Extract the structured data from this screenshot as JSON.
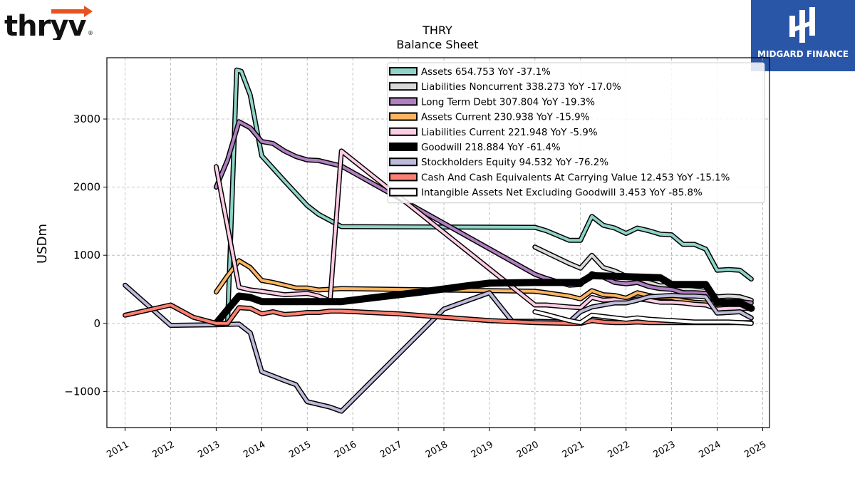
{
  "branding": {
    "company_logo_text": "thryv",
    "registered_mark": "®",
    "publisher_badge": "MIDGARD FINANCE",
    "accent_color": "#e8521e",
    "badge_color": "#2a56a8"
  },
  "chart_data": {
    "type": "line",
    "title": "THRY",
    "subtitle": "Balance  Sheet",
    "xlabel": "",
    "ylabel": "USDm",
    "xlim": [
      2010.6,
      2025.15
    ],
    "ylim": [
      -1530,
      3900
    ],
    "x_ticks": [
      "2011",
      "2012",
      "2013",
      "2014",
      "2015",
      "2016",
      "2017",
      "2018",
      "2019",
      "2020",
      "2021",
      "2022",
      "2023",
      "2024",
      "2025"
    ],
    "y_ticks": [
      {
        "value": 3000,
        "label": "3000"
      },
      {
        "value": 2000,
        "label": "2000"
      },
      {
        "value": 1000,
        "label": "1000"
      },
      {
        "value": 0,
        "label": "0"
      },
      {
        "value": -1000,
        "label": "−1000"
      }
    ],
    "grid": true,
    "legend_position": "top-right",
    "series": [
      {
        "name": "Assets  654.753 YoY -37.1%",
        "color": "#8dd3c7",
        "width": 4,
        "points": [
          [
            2013.0,
            0
          ],
          [
            2013.25,
            0
          ],
          [
            2013.45,
            3720
          ],
          [
            2013.55,
            3700
          ],
          [
            2013.75,
            3350
          ],
          [
            2014.0,
            2460
          ],
          [
            2014.5,
            2090
          ],
          [
            2015.0,
            1730
          ],
          [
            2015.25,
            1600
          ],
          [
            2015.75,
            1420
          ],
          [
            2020.0,
            1410
          ],
          [
            2020.25,
            1360
          ],
          [
            2020.75,
            1220
          ],
          [
            2021.0,
            1220
          ],
          [
            2021.25,
            1570
          ],
          [
            2021.5,
            1440
          ],
          [
            2021.75,
            1400
          ],
          [
            2022.0,
            1320
          ],
          [
            2022.25,
            1400
          ],
          [
            2022.5,
            1360
          ],
          [
            2022.75,
            1310
          ],
          [
            2023.0,
            1300
          ],
          [
            2023.25,
            1160
          ],
          [
            2023.5,
            1160
          ],
          [
            2023.75,
            1090
          ],
          [
            2024.0,
            780
          ],
          [
            2024.25,
            790
          ],
          [
            2024.5,
            780
          ],
          [
            2024.75,
            650
          ]
        ]
      },
      {
        "name": "Liabilities Noncurrent  338.273 YoY -17.0%",
        "color": "#d9d9d9",
        "width": 4,
        "points": [
          [
            2020.0,
            1120
          ],
          [
            2020.25,
            1040
          ],
          [
            2020.75,
            880
          ],
          [
            2021.0,
            810
          ],
          [
            2021.25,
            1000
          ],
          [
            2021.5,
            820
          ],
          [
            2021.75,
            770
          ],
          [
            2022.0,
            690
          ],
          [
            2022.25,
            670
          ],
          [
            2022.5,
            600
          ],
          [
            2022.75,
            550
          ],
          [
            2023.0,
            560
          ],
          [
            2023.25,
            510
          ],
          [
            2023.5,
            490
          ],
          [
            2023.75,
            470
          ],
          [
            2024.0,
            390
          ],
          [
            2024.25,
            400
          ],
          [
            2024.5,
            390
          ],
          [
            2024.75,
            340
          ]
        ]
      },
      {
        "name": "Long Term Debt  307.804 YoY -19.3%",
        "color": "#b07fc0",
        "width": 4,
        "points": [
          [
            2013.0,
            2000
          ],
          [
            2013.25,
            2400
          ],
          [
            2013.5,
            2960
          ],
          [
            2013.75,
            2870
          ],
          [
            2014.0,
            2670
          ],
          [
            2014.25,
            2640
          ],
          [
            2014.5,
            2530
          ],
          [
            2014.75,
            2450
          ],
          [
            2015.0,
            2400
          ],
          [
            2015.25,
            2390
          ],
          [
            2015.75,
            2310
          ],
          [
            2020.0,
            720
          ],
          [
            2020.25,
            660
          ],
          [
            2020.75,
            560
          ],
          [
            2021.0,
            570
          ],
          [
            2021.25,
            730
          ],
          [
            2021.5,
            680
          ],
          [
            2021.75,
            600
          ],
          [
            2022.0,
            580
          ],
          [
            2022.25,
            600
          ],
          [
            2022.5,
            540
          ],
          [
            2022.75,
            510
          ],
          [
            2023.0,
            500
          ],
          [
            2023.25,
            450
          ],
          [
            2023.5,
            450
          ],
          [
            2023.75,
            440
          ],
          [
            2024.0,
            310
          ],
          [
            2024.25,
            320
          ],
          [
            2024.5,
            320
          ],
          [
            2024.75,
            300
          ]
        ]
      },
      {
        "name": "Assets Current  230.938 YoY -15.9%",
        "color": "#fdb462",
        "width": 4,
        "points": [
          [
            2013.0,
            460
          ],
          [
            2013.25,
            700
          ],
          [
            2013.5,
            920
          ],
          [
            2013.75,
            820
          ],
          [
            2014.0,
            630
          ],
          [
            2014.25,
            600
          ],
          [
            2014.5,
            560
          ],
          [
            2014.75,
            520
          ],
          [
            2015.0,
            520
          ],
          [
            2015.25,
            490
          ],
          [
            2015.75,
            510
          ],
          [
            2020.0,
            470
          ],
          [
            2020.25,
            450
          ],
          [
            2020.75,
            400
          ],
          [
            2021.0,
            360
          ],
          [
            2021.25,
            480
          ],
          [
            2021.5,
            420
          ],
          [
            2021.75,
            410
          ],
          [
            2022.0,
            370
          ],
          [
            2022.25,
            450
          ],
          [
            2022.5,
            410
          ],
          [
            2022.75,
            380
          ],
          [
            2023.0,
            380
          ],
          [
            2023.25,
            330
          ],
          [
            2023.5,
            310
          ],
          [
            2023.75,
            300
          ],
          [
            2024.0,
            230
          ],
          [
            2024.25,
            250
          ],
          [
            2024.5,
            250
          ],
          [
            2024.75,
            230
          ]
        ]
      },
      {
        "name": "Liabilities Current  221.948 YoY -5.9%",
        "color": "#fccde5",
        "width": 4,
        "points": [
          [
            2013.0,
            2300
          ],
          [
            2013.5,
            530
          ],
          [
            2013.75,
            490
          ],
          [
            2014.0,
            470
          ],
          [
            2014.5,
            420
          ],
          [
            2015.0,
            440
          ],
          [
            2015.25,
            400
          ],
          [
            2015.5,
            330
          ],
          [
            2015.75,
            2530
          ],
          [
            2020.0,
            270
          ],
          [
            2020.25,
            270
          ],
          [
            2020.75,
            240
          ],
          [
            2021.0,
            230
          ],
          [
            2021.25,
            380
          ],
          [
            2021.5,
            340
          ],
          [
            2021.75,
            350
          ],
          [
            2022.0,
            320
          ],
          [
            2022.25,
            360
          ],
          [
            2022.5,
            340
          ],
          [
            2022.75,
            310
          ],
          [
            2023.0,
            310
          ],
          [
            2023.25,
            300
          ],
          [
            2023.5,
            280
          ],
          [
            2023.75,
            270
          ],
          [
            2024.0,
            210
          ],
          [
            2024.25,
            220
          ],
          [
            2024.5,
            220
          ],
          [
            2024.75,
            220
          ]
        ]
      },
      {
        "name": "Goodwill  218.884 YoY -61.4%",
        "color": "#000000",
        "width": 7,
        "points": [
          [
            2013.0,
            0
          ],
          [
            2013.25,
            200
          ],
          [
            2013.5,
            400
          ],
          [
            2013.75,
            380
          ],
          [
            2014.0,
            320
          ],
          [
            2015.75,
            320
          ],
          [
            2016.5,
            380
          ],
          [
            2017.5,
            460
          ],
          [
            2018.5,
            550
          ],
          [
            2019.0,
            590
          ],
          [
            2020.0,
            600
          ],
          [
            2020.75,
            600
          ],
          [
            2021.0,
            600
          ],
          [
            2021.25,
            700
          ],
          [
            2021.75,
            690
          ],
          [
            2022.25,
            680
          ],
          [
            2022.75,
            670
          ],
          [
            2023.0,
            570
          ],
          [
            2023.25,
            570
          ],
          [
            2023.5,
            570
          ],
          [
            2023.75,
            570
          ],
          [
            2024.0,
            310
          ],
          [
            2024.25,
            300
          ],
          [
            2024.5,
            300
          ],
          [
            2024.75,
            220
          ]
        ]
      },
      {
        "name": "Stockholders Equity  94.532 YoY -76.2%",
        "color": "#bebada",
        "width": 4,
        "points": [
          [
            2011.0,
            560
          ],
          [
            2012.0,
            -30
          ],
          [
            2013.0,
            -20
          ],
          [
            2013.5,
            -10
          ],
          [
            2013.75,
            -140
          ],
          [
            2014.0,
            -710
          ],
          [
            2014.5,
            -840
          ],
          [
            2014.75,
            -900
          ],
          [
            2015.0,
            -1150
          ],
          [
            2015.5,
            -1230
          ],
          [
            2015.75,
            -1290
          ],
          [
            2018.0,
            210
          ],
          [
            2019.0,
            450
          ],
          [
            2019.5,
            30
          ],
          [
            2020.0,
            30
          ],
          [
            2020.75,
            20
          ],
          [
            2021.0,
            170
          ],
          [
            2021.25,
            240
          ],
          [
            2021.75,
            300
          ],
          [
            2022.0,
            300
          ],
          [
            2022.25,
            340
          ],
          [
            2022.5,
            390
          ],
          [
            2022.75,
            400
          ],
          [
            2023.0,
            410
          ],
          [
            2023.25,
            400
          ],
          [
            2023.5,
            400
          ],
          [
            2023.75,
            390
          ],
          [
            2024.0,
            150
          ],
          [
            2024.25,
            160
          ],
          [
            2024.5,
            170
          ],
          [
            2024.75,
            80
          ]
        ]
      },
      {
        "name": "Cash And Cash Equivalents At Carrying Value  12.453 YoY -15.1%",
        "color": "#fb8072",
        "width": 4,
        "points": [
          [
            2011.0,
            120
          ],
          [
            2012.0,
            270
          ],
          [
            2012.5,
            90
          ],
          [
            2013.0,
            0
          ],
          [
            2013.25,
            0
          ],
          [
            2013.5,
            230
          ],
          [
            2013.75,
            220
          ],
          [
            2014.0,
            140
          ],
          [
            2014.25,
            170
          ],
          [
            2014.5,
            130
          ],
          [
            2014.75,
            140
          ],
          [
            2015.0,
            160
          ],
          [
            2015.25,
            160
          ],
          [
            2015.5,
            180
          ],
          [
            2015.75,
            180
          ],
          [
            2017.0,
            140
          ],
          [
            2018.0,
            90
          ],
          [
            2019.0,
            40
          ],
          [
            2020.0,
            10
          ],
          [
            2020.75,
            0
          ],
          [
            2021.0,
            0
          ],
          [
            2021.25,
            40
          ],
          [
            2021.5,
            20
          ],
          [
            2021.75,
            10
          ],
          [
            2022.0,
            10
          ],
          [
            2022.25,
            20
          ],
          [
            2022.5,
            10
          ],
          [
            2022.75,
            10
          ],
          [
            2023.0,
            10
          ],
          [
            2023.25,
            10
          ],
          [
            2024.0,
            10
          ],
          [
            2024.75,
            10
          ]
        ]
      },
      {
        "name": "Intangible Assets Net Excluding Goodwill  3.453 YoY -85.8%",
        "color": "#ffffff",
        "width": 4,
        "points": [
          [
            2020.0,
            170
          ],
          [
            2020.25,
            130
          ],
          [
            2020.75,
            40
          ],
          [
            2021.0,
            10
          ],
          [
            2021.25,
            120
          ],
          [
            2021.5,
            100
          ],
          [
            2021.75,
            80
          ],
          [
            2022.0,
            60
          ],
          [
            2022.25,
            80
          ],
          [
            2022.5,
            60
          ],
          [
            2022.75,
            50
          ],
          [
            2023.0,
            40
          ],
          [
            2023.25,
            30
          ],
          [
            2023.5,
            20
          ],
          [
            2023.75,
            20
          ],
          [
            2024.0,
            20
          ],
          [
            2024.25,
            20
          ],
          [
            2024.5,
            10
          ],
          [
            2024.75,
            0
          ]
        ]
      }
    ]
  }
}
